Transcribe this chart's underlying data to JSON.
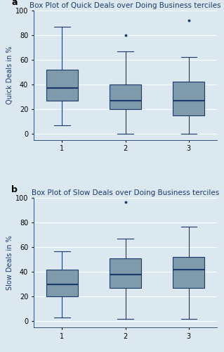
{
  "quick_deals": {
    "title": "Box Plot of Quick Deals over Doing Business terciles",
    "ylabel": "Quick Deals in %",
    "groups": [
      1,
      2,
      3
    ],
    "stats": [
      {
        "whislo": 7,
        "q1": 27,
        "med": 37,
        "q3": 52,
        "whishi": 87,
        "fliers": []
      },
      {
        "whislo": 0,
        "q1": 20,
        "med": 27,
        "q3": 40,
        "whishi": 67,
        "fliers": [
          80
        ]
      },
      {
        "whislo": 0,
        "q1": 15,
        "med": 27,
        "q3": 42,
        "whishi": 62,
        "fliers": [
          92
        ]
      }
    ]
  },
  "slow_deals": {
    "title": "Box Plot of Slow Deals over Doing Business terciles",
    "ylabel": "Slow Deals in %",
    "groups": [
      1,
      2,
      3
    ],
    "stats": [
      {
        "whislo": 3,
        "q1": 20,
        "med": 30,
        "q3": 42,
        "whishi": 57,
        "fliers": []
      },
      {
        "whislo": 2,
        "q1": 27,
        "med": 38,
        "q3": 51,
        "whishi": 67,
        "fliers": [
          97
        ]
      },
      {
        "whislo": 2,
        "q1": 27,
        "med": 42,
        "q3": 52,
        "whishi": 77,
        "fliers": []
      }
    ]
  },
  "box_color": "#7f9aaa",
  "box_edge_color": "#1a3a6b",
  "median_color": "#1a3a6b",
  "whisker_color": "#1a3a6b",
  "flier_color": "#1a3a6b",
  "bg_color": "#dce8f0",
  "ylim": [
    -5,
    100
  ],
  "yticks": [
    0,
    20,
    40,
    60,
    80,
    100
  ],
  "panel_label_fontsize": 9,
  "title_fontsize": 7.5,
  "tick_fontsize": 7,
  "ylabel_fontsize": 7,
  "box_width": 0.5
}
